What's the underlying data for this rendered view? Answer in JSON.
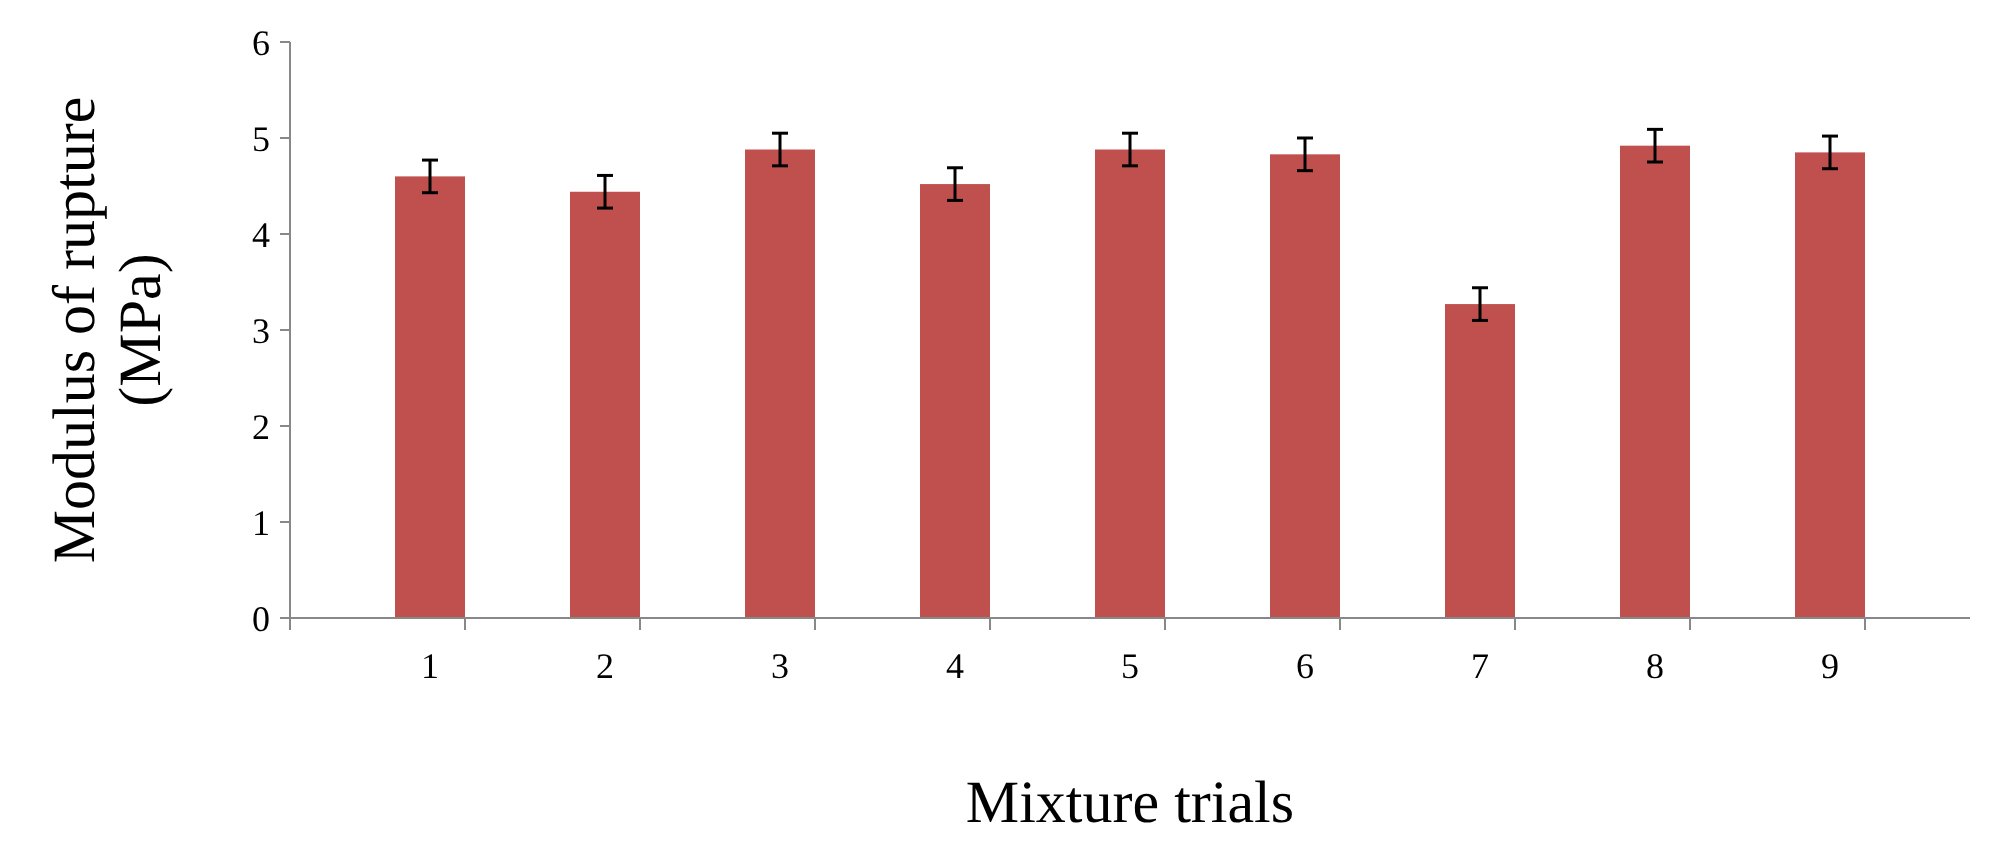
{
  "chart_data": {
    "type": "bar",
    "xlabel": "Mixture trials",
    "ylabel": "Modulus of rupture (MPa)",
    "categories": [
      "1",
      "2",
      "3",
      "4",
      "5",
      "6",
      "7",
      "8",
      "9"
    ],
    "series": [
      {
        "color": "#c0504d",
        "values": [
          4.6,
          4.44,
          4.88,
          4.52,
          4.88,
          4.83,
          3.27,
          4.92,
          4.85
        ],
        "errors": [
          0.17,
          0.17,
          0.17,
          0.17,
          0.17,
          0.17,
          0.17,
          0.17,
          0.17
        ]
      }
    ],
    "ylim": [
      0,
      6
    ],
    "yticks": [
      0,
      1,
      2,
      3,
      4,
      5,
      6
    ]
  }
}
